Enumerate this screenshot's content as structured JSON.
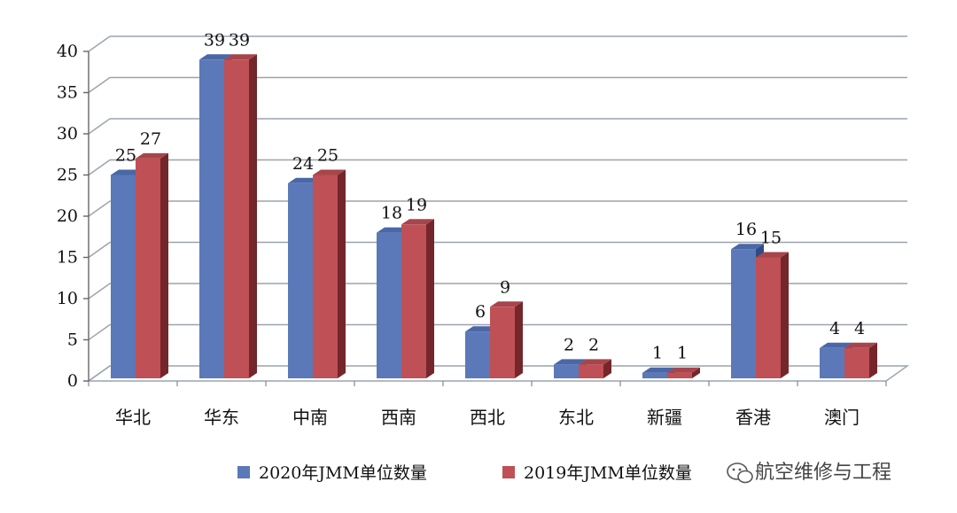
{
  "chart_data": {
    "type": "bar",
    "title": "",
    "xlabel": "",
    "ylabel": "",
    "ylim": [
      0,
      40
    ],
    "yticks": [
      0,
      5,
      10,
      15,
      20,
      25,
      30,
      35,
      40
    ],
    "grid": true,
    "categories": [
      "华北",
      "华东",
      "中南",
      "西南",
      "西北",
      "东北",
      "新疆",
      "香港",
      "澳门"
    ],
    "series": [
      {
        "name": "2020年JMM单位数量",
        "values": [
          25,
          39,
          24,
          18,
          6,
          2,
          1,
          16,
          4
        ],
        "color": "#5b78b8",
        "side_color": "#2f4a85",
        "top_color": "#4a67a6"
      },
      {
        "name": "2019年JMM单位数量",
        "values": [
          27,
          39,
          25,
          19,
          9,
          2,
          1,
          15,
          4
        ],
        "color": "#bf5056",
        "side_color": "#74262b",
        "top_color": "#a7454c"
      }
    ],
    "legend_position": "bottom-center"
  },
  "watermark": {
    "text": "航空维修与工程",
    "icon": "wechat-icon"
  }
}
